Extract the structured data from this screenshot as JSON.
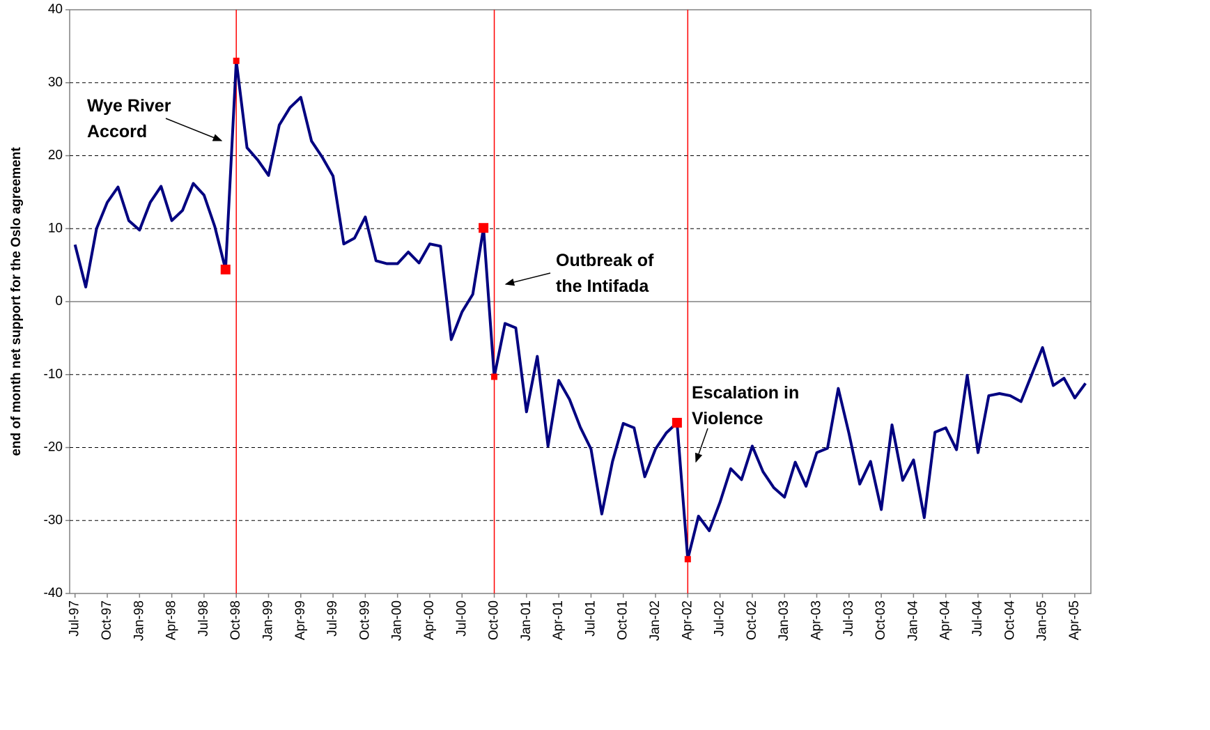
{
  "chart_data": {
    "type": "line",
    "y_label": "end of month net support for the Oslo agreement",
    "categories": [
      "Jul-97",
      null,
      null,
      "Oct-97",
      null,
      null,
      "Jan-98",
      null,
      null,
      "Apr-98",
      null,
      null,
      "Jul-98",
      null,
      null,
      "Oct-98",
      null,
      null,
      "Jan-99",
      null,
      null,
      "Apr-99",
      null,
      null,
      "Jul-99",
      null,
      null,
      "Oct-99",
      null,
      null,
      "Jan-00",
      null,
      null,
      "Apr-00",
      null,
      null,
      "Jul-00",
      null,
      null,
      "Oct-00",
      null,
      null,
      "Jan-01",
      null,
      null,
      "Apr-01",
      null,
      null,
      "Jul-01",
      null,
      null,
      "Oct-01",
      null,
      null,
      "Jan-02",
      null,
      null,
      "Apr-02",
      null,
      null,
      "Jul-02",
      null,
      null,
      "Oct-02",
      null,
      null,
      "Jan-03",
      null,
      null,
      "Apr-03",
      null,
      null,
      "Jul-03",
      null,
      null,
      "Oct-03",
      null,
      null,
      "Jan-04",
      null,
      null,
      "Apr-04",
      null,
      null,
      "Jul-04",
      null,
      null,
      "Oct-04",
      null,
      null,
      "Jan-05",
      null,
      null,
      "Apr-05",
      null
    ],
    "series": [
      {
        "color": "#000080",
        "values": [
          7.8,
          2.0,
          10.0,
          13.6,
          15.7,
          11.1,
          9.8,
          13.6,
          15.8,
          11.1,
          12.5,
          16.2,
          14.6,
          10.3,
          4.4,
          33.0,
          21.1,
          19.4,
          17.3,
          24.2,
          26.6,
          28.0,
          22.0,
          19.8,
          17.2,
          7.9,
          8.7,
          11.6,
          5.6,
          5.2,
          5.2,
          6.8,
          5.3,
          7.9,
          7.6,
          -5.2,
          -1.4,
          1.0,
          10.1,
          -10.3,
          -3.0,
          -3.6,
          -15.1,
          -7.5,
          -19.8,
          -10.8,
          -13.4,
          -17.2,
          -20.2,
          -29.1,
          -21.9,
          -16.7,
          -17.3,
          -24.0,
          -20.2,
          -18.0,
          -16.6,
          -35.3,
          -29.4,
          -31.4,
          -27.5,
          -22.9,
          -24.4,
          -19.8,
          -23.3,
          -25.5,
          -26.8,
          -22.0,
          -25.3,
          -20.7,
          -20.1,
          -11.9,
          -18.1,
          -25.0,
          -21.9,
          -28.5,
          -16.9,
          -24.5,
          -21.7,
          -29.6,
          -17.9,
          -17.3,
          -20.3,
          -10.1,
          -20.7,
          -12.9,
          -12.6,
          -12.9,
          -13.7,
          -10.0,
          -6.3,
          -11.5,
          -10.5,
          -13.2,
          -11.2
        ]
      },
      {
        "color": "#ff0000",
        "marker": "large",
        "values": [
          null,
          null,
          null,
          null,
          null,
          null,
          null,
          null,
          null,
          null,
          null,
          null,
          null,
          null,
          4.4,
          null,
          null,
          null,
          null,
          null,
          null,
          null,
          null,
          null,
          null,
          null,
          null,
          null,
          null,
          null,
          null,
          null,
          null,
          null,
          null,
          null,
          null,
          null,
          10.1,
          null,
          null,
          null,
          null,
          null,
          null,
          null,
          null,
          null,
          null,
          null,
          null,
          null,
          null,
          null,
          null,
          null,
          -16.6,
          null,
          null,
          null,
          null,
          null,
          null,
          null,
          null,
          null,
          null,
          null,
          null,
          null,
          null,
          null,
          null,
          null,
          null,
          null,
          null,
          null,
          null,
          null,
          null,
          null,
          null,
          null,
          null,
          null,
          null,
          null,
          null,
          null,
          null,
          null,
          null,
          null,
          null
        ]
      },
      {
        "color": "#ff0000",
        "marker": "small",
        "values": [
          null,
          null,
          null,
          null,
          null,
          null,
          null,
          null,
          null,
          null,
          null,
          null,
          null,
          null,
          null,
          33.0,
          null,
          null,
          null,
          null,
          null,
          null,
          null,
          null,
          null,
          null,
          null,
          null,
          null,
          null,
          null,
          null,
          null,
          null,
          null,
          null,
          null,
          null,
          null,
          -10.3,
          null,
          null,
          null,
          null,
          null,
          null,
          null,
          null,
          null,
          null,
          null,
          null,
          null,
          null,
          null,
          null,
          null,
          -35.3,
          null,
          null,
          null,
          null,
          null,
          null,
          null,
          null,
          null,
          null,
          null,
          null,
          null,
          null,
          null,
          null,
          null,
          null,
          null,
          null,
          null,
          null,
          null,
          null,
          null,
          null,
          null,
          null,
          null,
          null,
          null,
          null,
          null,
          null,
          null,
          null,
          null
        ]
      }
    ],
    "vlines": [
      "Oct-98",
      "Oct-00",
      "Apr-02"
    ],
    "vline_color": "#ff0000",
    "annotations": [
      {
        "text": [
          "Wye River",
          "Accord"
        ]
      },
      {
        "text": [
          "Outbreak of",
          "the Intifada"
        ]
      },
      {
        "text": [
          "Escalation in",
          "Violence"
        ]
      }
    ],
    "ylim": [
      -40,
      40
    ],
    "yticks": [
      -40,
      -30,
      -20,
      -10,
      0,
      10,
      20,
      30,
      40
    ],
    "grid": true
  }
}
